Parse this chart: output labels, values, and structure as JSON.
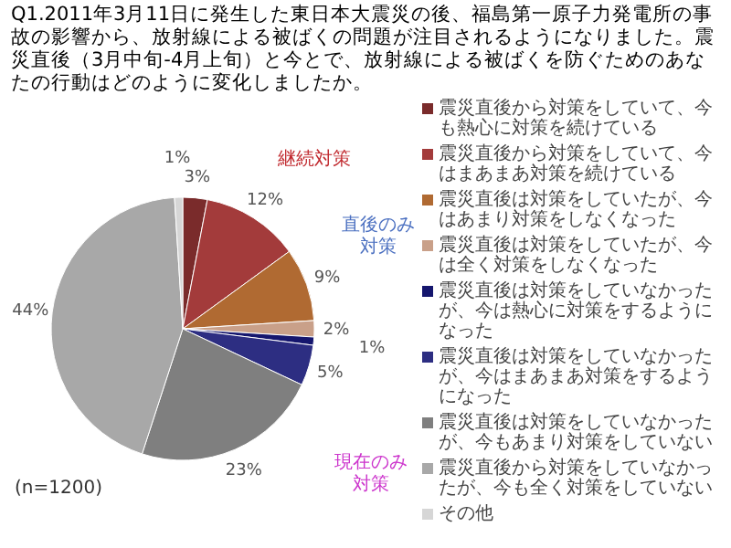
{
  "chart_data": {
    "type": "pie",
    "title": "Q1.2011年3月11日に発生した東日本大震災の後、福島第一原子力発電所の事故の影響から、放射線による被ばくの問題が注目されるようになりました。震災直後（3月中旬-4月上旬）と今とで、放射線による被ばくを防ぐためのあなたの行動はどのように変化しましたか。",
    "categories": [
      "震災直後から対策をしていて、今も熱心に対策を続けている",
      "震災直後から対策をしていて、今はまあまあ対策を続けている",
      "震災直後は対策をしていたが、今はあまり対策をしなくなった",
      "震災直後は対策をしていたが、今は全く対策をしなくなった",
      "震災直後は対策をしていなかったが、今は熱心に対策をするようになった",
      "震災直後は対策をしていなかったが、今はまあまあ対策をするようになった",
      "震災直後は対策をしていなかったが、今もあまり対策をしていない",
      "震災直後から対策をしていなかったが、今も全く対策をしていない",
      "その他"
    ],
    "values": [
      3,
      12,
      9,
      2,
      1,
      5,
      23,
      44,
      1
    ],
    "colors": [
      "#7a2b2b",
      "#a33b3b",
      "#b06a32",
      "#c9a089",
      "#15166e",
      "#2d2e82",
      "#7f7f7f",
      "#a8a8a8",
      "#d6d6d6"
    ],
    "value_labels": [
      "3%",
      "12%",
      "9%",
      "2%",
      "1%",
      "5%",
      "23%",
      "44%",
      "1%"
    ],
    "legend": "right",
    "annotations": [
      "継続対策",
      "直後のみ対策",
      "現在のみ対策",
      "(n=1200)"
    ]
  }
}
